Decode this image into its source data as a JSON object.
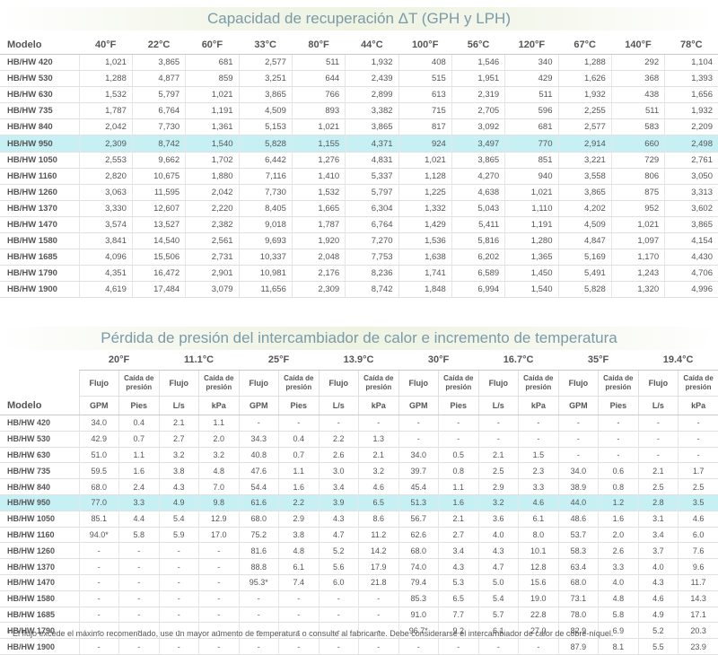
{
  "table1": {
    "title": "Capacidad de recuperación ΔT (GPH y LPH)",
    "headers": [
      "Modelo",
      "40°F",
      "22°C",
      "60°F",
      "33°C",
      "80°F",
      "44°C",
      "100°F",
      "56°C",
      "120°F",
      "67°C",
      "140°F",
      "78°C"
    ],
    "rows": [
      [
        "HB/HW 420",
        "1,021",
        "3,865",
        "681",
        "2,577",
        "511",
        "1,932",
        "408",
        "1,546",
        "340",
        "1,288",
        "292",
        "1,104"
      ],
      [
        "HB/HW 530",
        "1,288",
        "4,877",
        "859",
        "3,251",
        "644",
        "2,439",
        "515",
        "1,951",
        "429",
        "1,626",
        "368",
        "1,393"
      ],
      [
        "HB/HW 630",
        "1,532",
        "5,797",
        "1,021",
        "3,865",
        "766",
        "2,899",
        "613",
        "2,319",
        "511",
        "1,932",
        "438",
        "1,656"
      ],
      [
        "HB/HW 735",
        "1,787",
        "6,764",
        "1,191",
        "4,509",
        "893",
        "3,382",
        "715",
        "2,705",
        "596",
        "2,255",
        "511",
        "1,932"
      ],
      [
        "HB/HW 840",
        "2,042",
        "7,730",
        "1,361",
        "5,153",
        "1,021",
        "3,865",
        "817",
        "3,092",
        "681",
        "2,577",
        "583",
        "2,209"
      ],
      [
        "HB/HW 950",
        "2,309",
        "8,742",
        "1,540",
        "5,828",
        "1,155",
        "4,371",
        "924",
        "3,497",
        "770",
        "2,914",
        "660",
        "2,498"
      ],
      [
        "HB/HW 1050",
        "2,553",
        "9,662",
        "1,702",
        "6,442",
        "1,276",
        "4,831",
        "1,021",
        "3,865",
        "851",
        "3,221",
        "729",
        "2,761"
      ],
      [
        "HB/HW 1160",
        "2,820",
        "10,675",
        "1,880",
        "7,116",
        "1,410",
        "5,337",
        "1,128",
        "4,270",
        "940",
        "3,558",
        "806",
        "3,050"
      ],
      [
        "HB/HW 1260",
        "3,063",
        "11,595",
        "2,042",
        "7,730",
        "1,532",
        "5,797",
        "1,225",
        "4,638",
        "1,021",
        "3,865",
        "875",
        "3,313"
      ],
      [
        "HB/HW 1370",
        "3,330",
        "12,607",
        "2,220",
        "8,405",
        "1,665",
        "6,304",
        "1,332",
        "5,043",
        "1,110",
        "4,202",
        "952",
        "3,602"
      ],
      [
        "HB/HW 1470",
        "3,574",
        "13,527",
        "2,382",
        "9,018",
        "1,787",
        "6,764",
        "1,429",
        "5,411",
        "1,191",
        "4,509",
        "1,021",
        "3,865"
      ],
      [
        "HB/HW 1580",
        "3,841",
        "14,540",
        "2,561",
        "9,693",
        "1,920",
        "7,270",
        "1,536",
        "5,816",
        "1,280",
        "4,847",
        "1,097",
        "4,154"
      ],
      [
        "HB/HW 1685",
        "4,096",
        "15,506",
        "2,731",
        "10,337",
        "2,048",
        "7,753",
        "1,638",
        "6,202",
        "1,365",
        "5,169",
        "1,170",
        "4,430"
      ],
      [
        "HB/HW 1790",
        "4,351",
        "16,472",
        "2,901",
        "10,981",
        "2,176",
        "8,236",
        "1,741",
        "6,589",
        "1,450",
        "5,491",
        "1,243",
        "4,706"
      ],
      [
        "HB/HW 1900",
        "4,619",
        "17,484",
        "3,079",
        "11,656",
        "2,309",
        "8,742",
        "1,848",
        "6,994",
        "1,540",
        "5,828",
        "1,320",
        "4,996"
      ]
    ],
    "highlight_row": 5
  },
  "table2": {
    "title": "Pérdida de presión del intercambiador de calor e incremento de temperatura",
    "model_label": "Modelo",
    "temps": [
      "20°F",
      "11.1°C",
      "25°F",
      "13.9°C",
      "30°F",
      "16.7°C",
      "35°F",
      "19.4°C"
    ],
    "sub": [
      "Flujo",
      "Caída de presión",
      "Flujo",
      "Caída de presión",
      "Flujo",
      "Caída de presión",
      "Flujo",
      "Caída de presión",
      "Flujo",
      "Caída de presión",
      "Flujo",
      "Caída de presión",
      "Flujo",
      "Caída de presión",
      "Flujo",
      "Caída de presión"
    ],
    "units": [
      "GPM",
      "Pies",
      "L/s",
      "kPa",
      "GPM",
      "Pies",
      "L/s",
      "kPa",
      "GPM",
      "Pies",
      "L/s",
      "kPa",
      "GPM",
      "Pies",
      "L/s",
      "kPa"
    ],
    "rows": [
      [
        "HB/HW 420",
        "34.0",
        "0.4",
        "2.1",
        "1.1",
        "-",
        "-",
        "-",
        "-",
        "-",
        "-",
        "-",
        "-",
        "-",
        "-",
        "-",
        "-"
      ],
      [
        "HB/HW 530",
        "42.9",
        "0.7",
        "2.7",
        "2.0",
        "34.3",
        "0.4",
        "2.2",
        "1.3",
        "-",
        "-",
        "-",
        "-",
        "-",
        "-",
        "-",
        "-"
      ],
      [
        "HB/HW 630",
        "51.0",
        "1.1",
        "3.2",
        "3.2",
        "40.8",
        "0.7",
        "2.6",
        "2.1",
        "34.0",
        "0.5",
        "2.1",
        "1.5",
        "-",
        "-",
        "-",
        "-"
      ],
      [
        "HB/HW 735",
        "59.5",
        "1.6",
        "3.8",
        "4.8",
        "47.6",
        "1.1",
        "3.0",
        "3.2",
        "39.7",
        "0.8",
        "2.5",
        "2.3",
        "34.0",
        "0.6",
        "2.1",
        "1.7"
      ],
      [
        "HB/HW 840",
        "68.0",
        "2.4",
        "4.3",
        "7.0",
        "54.4",
        "1.6",
        "3.4",
        "4.6",
        "45.4",
        "1.1",
        "2.9",
        "3.3",
        "38.9",
        "0.8",
        "2.5",
        "2.5"
      ],
      [
        "HB/HW 950",
        "77.0",
        "3.3",
        "4.9",
        "9.8",
        "61.6",
        "2.2",
        "3.9",
        "6.5",
        "51.3",
        "1.6",
        "3.2",
        "4.6",
        "44.0",
        "1.2",
        "2.8",
        "3.5"
      ],
      [
        "HB/HW 1050",
        "85.1",
        "4.4",
        "5.4",
        "12.9",
        "68.0",
        "2.9",
        "4.3",
        "8.6",
        "56.7",
        "2.1",
        "3.6",
        "6.1",
        "48.6",
        "1.6",
        "3.1",
        "4.6"
      ],
      [
        "HB/HW 1160",
        "94.0*",
        "5.8",
        "5.9",
        "17.0",
        "75.2",
        "3.8",
        "4.7",
        "11.2",
        "62.6",
        "2.7",
        "4.0",
        "8.0",
        "53.7",
        "2.0",
        "3.4",
        "6.0"
      ],
      [
        "HB/HW 1260",
        "-",
        "-",
        "-",
        "-",
        "81.6",
        "4.8",
        "5.2",
        "14.2",
        "68.0",
        "3.4",
        "4.3",
        "10.1",
        "58.3",
        "2.6",
        "3.7",
        "7.6"
      ],
      [
        "HB/HW 1370",
        "-",
        "-",
        "-",
        "-",
        "88.8",
        "6.1",
        "5.6",
        "17.9",
        "74.0",
        "4.3",
        "4.7",
        "12.8",
        "63.4",
        "3.3",
        "4.0",
        "9.6"
      ],
      [
        "HB/HW 1470",
        "-",
        "-",
        "-",
        "-",
        "95.3*",
        "7.4",
        "6.0",
        "21.8",
        "79.4",
        "5.3",
        "5.0",
        "15.6",
        "68.0",
        "4.0",
        "4.3",
        "11.7"
      ],
      [
        "HB/HW 1580",
        "-",
        "-",
        "-",
        "-",
        "-",
        "-",
        "-",
        "-",
        "85.3",
        "6.5",
        "5.4",
        "19.0",
        "73.1",
        "4.8",
        "4.6",
        "14.3"
      ],
      [
        "HB/HW 1685",
        "-",
        "-",
        "-",
        "-",
        "-",
        "-",
        "-",
        "-",
        "91.0",
        "7.7",
        "5.7",
        "22.8",
        "78.0",
        "5.8",
        "4.9",
        "17.1"
      ],
      [
        "HB/HW 1790",
        "-",
        "-",
        "-",
        "-",
        "-",
        "-",
        "-",
        "-",
        "96.7*",
        "9.2",
        "6.1",
        "27.0",
        "82.9",
        "6.9",
        "5.2",
        "20.3"
      ],
      [
        "HB/HW 1900",
        "-",
        "-",
        "-",
        "-",
        "-",
        "-",
        "-",
        "-",
        "-",
        "-",
        "-",
        "-",
        "87.9",
        "8.1",
        "5.5",
        "23.9"
      ]
    ],
    "highlight_row": 5
  },
  "footnote": "* El flujo excede el máximo recomendado, use un mayor aumento de temperatura o consulte al fabricante. Debe considerarse el intercambiador de calor de cobre-níquel."
}
